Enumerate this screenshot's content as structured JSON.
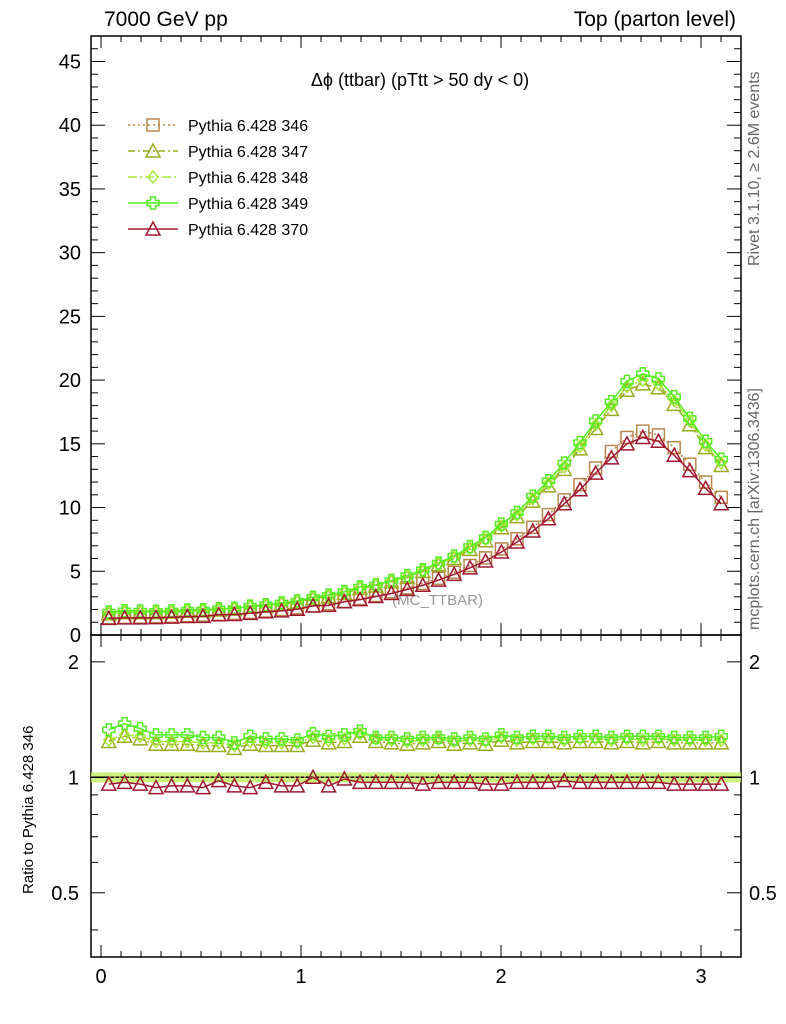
{
  "header": {
    "left": "7000 GeV pp",
    "right": "Top (parton level)"
  },
  "side": {
    "rivet": "Rivet 3.1.10, ≥ 2.6M events",
    "mcplots": "mcplots.cern.ch [arXiv:1306.3436]"
  },
  "ratio_label": "Ratio to Pythia 6.428 346",
  "chart_data": {
    "type": "line",
    "title": "Δϕ (ttbar) (pTtt > 50 dy < 0)",
    "watermark": "(MC_TTBAR)",
    "x": [
      0.039,
      0.118,
      0.196,
      0.275,
      0.353,
      0.432,
      0.51,
      0.589,
      0.667,
      0.746,
      0.824,
      0.903,
      0.981,
      1.06,
      1.138,
      1.217,
      1.295,
      1.374,
      1.452,
      1.531,
      1.609,
      1.688,
      1.766,
      1.845,
      1.923,
      2.002,
      2.08,
      2.159,
      2.237,
      2.316,
      2.395,
      2.473,
      2.552,
      2.63,
      2.709,
      2.787,
      2.866,
      2.944,
      3.023,
      3.101
    ],
    "xlim": [
      -0.05,
      3.2
    ],
    "xticks": [
      "0",
      "1",
      "2",
      "3"
    ],
    "main_ylim": [
      0,
      47
    ],
    "main_yticks": [
      "0",
      "5",
      "10",
      "15",
      "20",
      "25",
      "30",
      "35",
      "40",
      "45"
    ],
    "ratio_ylim": [
      0.34,
      2.35
    ],
    "ratio_yticks": [
      "0.5",
      "1",
      "2"
    ],
    "band_color": "#c0ee66",
    "series": [
      {
        "name": "Pythia 6.428 346",
        "color": "#b8864b",
        "marker": "square",
        "dash": "2,3",
        "values": [
          1.35,
          1.38,
          1.4,
          1.44,
          1.47,
          1.52,
          1.56,
          1.62,
          1.7,
          1.78,
          1.88,
          2.0,
          2.13,
          2.28,
          2.45,
          2.64,
          2.86,
          3.1,
          3.38,
          3.7,
          4.05,
          4.45,
          4.92,
          5.45,
          6.05,
          6.75,
          7.55,
          8.45,
          9.45,
          10.6,
          11.8,
          13.1,
          14.4,
          15.5,
          16.0,
          15.7,
          14.7,
          13.4,
          12.0,
          10.8
        ],
        "ratio": [
          1,
          1,
          1,
          1,
          1,
          1,
          1,
          1,
          1,
          1,
          1,
          1,
          1,
          1,
          1,
          1,
          1,
          1,
          1,
          1,
          1,
          1,
          1,
          1,
          1,
          1,
          1,
          1,
          1,
          1,
          1,
          1,
          1,
          1,
          1,
          1,
          1,
          1,
          1,
          1
        ]
      },
      {
        "name": "Pythia 6.428 347",
        "color": "#9aab1e",
        "marker": "triangle",
        "dash": "7,3,2,3",
        "values": [
          1.67,
          1.76,
          1.76,
          1.76,
          1.79,
          1.86,
          1.89,
          1.96,
          2.03,
          2.18,
          2.27,
          2.42,
          2.58,
          2.85,
          3.01,
          3.27,
          3.65,
          3.84,
          4.17,
          4.51,
          4.98,
          5.51,
          6.0,
          6.72,
          7.4,
          8.42,
          9.29,
          10.5,
          11.7,
          13.0,
          14.6,
          16.2,
          17.7,
          19.2,
          19.7,
          19.4,
          18.1,
          16.5,
          14.7,
          13.3
        ],
        "ratio": [
          1.24,
          1.28,
          1.26,
          1.22,
          1.22,
          1.22,
          1.21,
          1.21,
          1.19,
          1.22,
          1.21,
          1.21,
          1.21,
          1.25,
          1.23,
          1.24,
          1.28,
          1.24,
          1.23,
          1.22,
          1.23,
          1.24,
          1.22,
          1.23,
          1.22,
          1.25,
          1.23,
          1.24,
          1.24,
          1.23,
          1.24,
          1.24,
          1.23,
          1.24,
          1.23,
          1.24,
          1.23,
          1.23,
          1.23,
          1.23
        ]
      },
      {
        "name": "Pythia 6.428 348",
        "color": "#a8e83a",
        "marker": "diamond",
        "dash": "9,3,2,3",
        "values": [
          1.69,
          1.77,
          1.79,
          1.79,
          1.82,
          1.89,
          1.92,
          1.99,
          2.06,
          2.21,
          2.31,
          2.46,
          2.62,
          2.9,
          3.06,
          3.32,
          3.7,
          3.9,
          4.23,
          4.57,
          5.06,
          5.59,
          6.09,
          6.82,
          7.51,
          8.55,
          9.43,
          10.7,
          11.9,
          13.2,
          14.8,
          16.5,
          18.0,
          19.5,
          20.0,
          19.7,
          18.4,
          16.8,
          14.9,
          13.5
        ],
        "ratio": [
          1.25,
          1.29,
          1.28,
          1.24,
          1.24,
          1.24,
          1.23,
          1.23,
          1.21,
          1.24,
          1.23,
          1.23,
          1.23,
          1.27,
          1.25,
          1.26,
          1.3,
          1.26,
          1.25,
          1.24,
          1.25,
          1.26,
          1.24,
          1.25,
          1.24,
          1.27,
          1.25,
          1.26,
          1.26,
          1.25,
          1.26,
          1.26,
          1.25,
          1.26,
          1.25,
          1.26,
          1.25,
          1.25,
          1.25,
          1.25
        ]
      },
      {
        "name": "Pythia 6.428 349",
        "color": "#55ee22",
        "marker": "cross",
        "dash": "",
        "values": [
          1.8,
          1.9,
          1.88,
          1.86,
          1.89,
          1.96,
          1.98,
          2.06,
          2.09,
          2.27,
          2.37,
          2.52,
          2.67,
          2.96,
          3.13,
          3.4,
          3.77,
          3.93,
          4.28,
          4.66,
          5.12,
          5.65,
          6.2,
          6.94,
          7.65,
          8.71,
          9.61,
          10.9,
          12.1,
          13.5,
          15.1,
          16.8,
          18.3,
          19.9,
          20.5,
          20.1,
          18.7,
          17.0,
          15.2,
          13.8
        ],
        "ratio": [
          1.33,
          1.38,
          1.34,
          1.29,
          1.29,
          1.29,
          1.27,
          1.27,
          1.23,
          1.28,
          1.26,
          1.26,
          1.25,
          1.3,
          1.28,
          1.29,
          1.32,
          1.27,
          1.27,
          1.26,
          1.27,
          1.27,
          1.26,
          1.27,
          1.26,
          1.29,
          1.27,
          1.28,
          1.28,
          1.27,
          1.28,
          1.28,
          1.27,
          1.28,
          1.28,
          1.28,
          1.27,
          1.27,
          1.27,
          1.28
        ]
      },
      {
        "name": "Pythia 6.428 370",
        "color": "#a01830",
        "marker": "triangle",
        "dash": "",
        "values": [
          1.3,
          1.34,
          1.34,
          1.36,
          1.4,
          1.45,
          1.46,
          1.59,
          1.61,
          1.7,
          1.82,
          1.89,
          2.02,
          2.28,
          2.32,
          2.61,
          2.78,
          3.02,
          3.26,
          3.58,
          3.9,
          4.31,
          4.76,
          5.27,
          5.81,
          6.51,
          7.3,
          8.16,
          9.12,
          10.3,
          11.4,
          12.7,
          13.9,
          15.0,
          15.5,
          15.2,
          14.1,
          12.9,
          11.5,
          10.3
        ],
        "ratio": [
          0.96,
          0.97,
          0.96,
          0.94,
          0.95,
          0.95,
          0.94,
          0.98,
          0.95,
          0.94,
          0.97,
          0.95,
          0.95,
          1.0,
          0.95,
          0.99,
          0.97,
          0.97,
          0.97,
          0.97,
          0.96,
          0.97,
          0.97,
          0.97,
          0.96,
          0.96,
          0.97,
          0.97,
          0.97,
          0.98,
          0.97,
          0.97,
          0.97,
          0.97,
          0.97,
          0.97,
          0.96,
          0.96,
          0.96,
          0.96
        ]
      }
    ]
  }
}
